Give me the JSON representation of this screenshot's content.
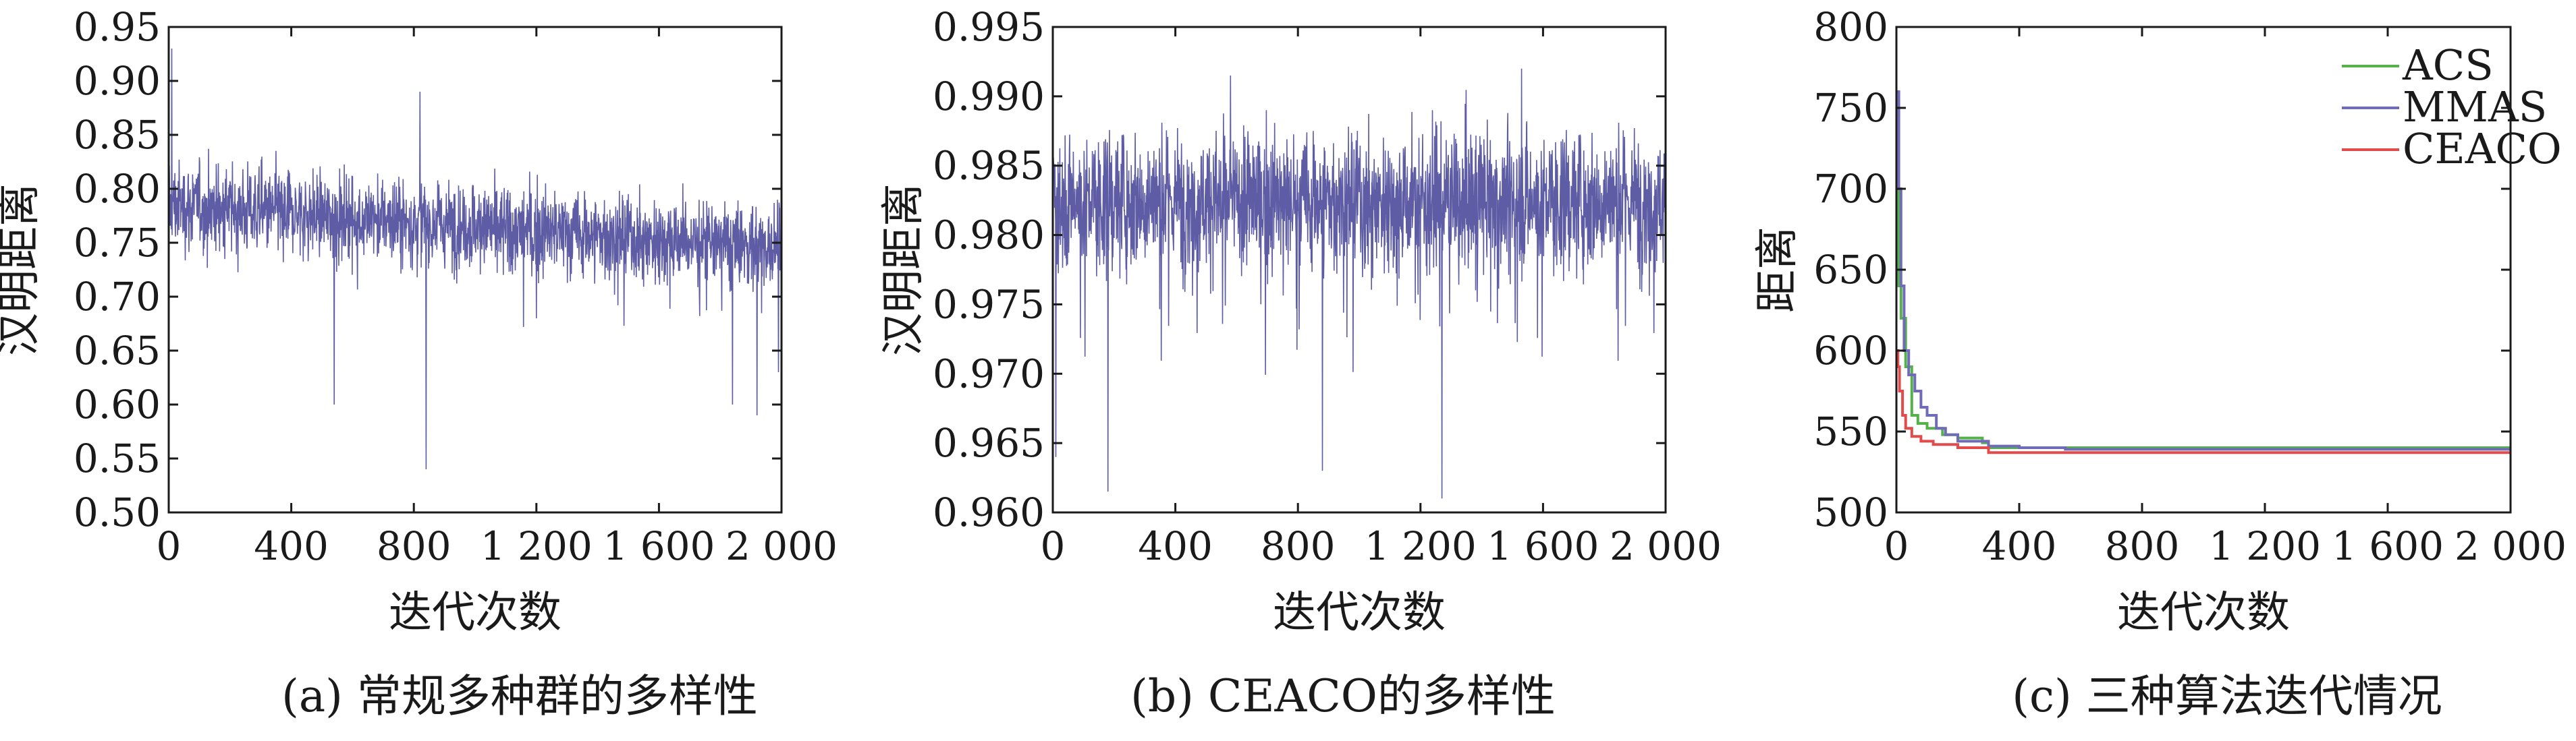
{
  "chart_data": [
    {
      "type": "line",
      "caption": "(a) 常规多种群的多样性",
      "xlabel": "迭代次数",
      "ylabel": "汉明距离",
      "xlim": [
        0,
        2000
      ],
      "ylim": [
        0.5,
        0.95
      ],
      "xticks": [
        "0",
        "400",
        "800",
        "1 200",
        "1 600",
        "2 000"
      ],
      "yticks": [
        "0.50",
        "0.55",
        "0.60",
        "0.65",
        "0.70",
        "0.75",
        "0.80",
        "0.85",
        "0.90",
        "0.95"
      ],
      "series": [
        {
          "color": "#4b4a9a",
          "description": "noisy diversity trace, mean ~0.78 declining to ~0.74, fluctuating roughly 0.70–0.84",
          "spikes": [
            [
              0,
              0.95
            ],
            [
              10,
              0.93
            ],
            [
              540,
              0.6
            ],
            [
              820,
              0.89
            ],
            [
              840,
              0.54
            ],
            [
              1840,
              0.6
            ],
            [
              1920,
              0.59
            ],
            [
              1990,
              0.63
            ]
          ]
        }
      ]
    },
    {
      "type": "line",
      "caption": "(b) CEACO的多样性",
      "xlabel": "迭代次数",
      "ylabel": "汉明距离",
      "xlim": [
        0,
        2000
      ],
      "ylim": [
        0.96,
        0.995
      ],
      "xticks": [
        "0",
        "400",
        "800",
        "1 200",
        "1 600",
        "2 000"
      ],
      "yticks": [
        "0.960",
        "0.965",
        "0.970",
        "0.975",
        "0.980",
        "0.985",
        "0.990",
        "0.995"
      ],
      "series": [
        {
          "color": "#4b4a9a",
          "description": "noisy diversity trace, mean ~0.982, fluctuating roughly 0.975–0.990",
          "spikes": [
            [
              10,
              0.964
            ],
            [
              180,
              0.9615
            ],
            [
              880,
              0.963
            ],
            [
              1270,
              0.961
            ],
            [
              580,
              0.9915
            ],
            [
              1530,
              0.992
            ]
          ]
        }
      ]
    },
    {
      "type": "line",
      "caption": "(c) 三种算法迭代情况",
      "xlabel": "迭代次数",
      "ylabel": "距离",
      "xlim": [
        0,
        2000
      ],
      "ylim": [
        500,
        800
      ],
      "xticks": [
        "0",
        "400",
        "800",
        "1 200",
        "1 600",
        "2 000"
      ],
      "yticks": [
        "500",
        "550",
        "600",
        "650",
        "700",
        "750",
        "800"
      ],
      "legend_position": "top-right",
      "series": [
        {
          "name": "ACS",
          "color": "#55b24a",
          "x": [
            0,
            8,
            15,
            30,
            50,
            70,
            100,
            150,
            200,
            280,
            300,
            2000
          ],
          "y": [
            700,
            640,
            620,
            590,
            560,
            555,
            552,
            548,
            546,
            543,
            540,
            540
          ]
        },
        {
          "name": "MMAS",
          "color": "#6f6bb8",
          "x": [
            0,
            8,
            15,
            25,
            40,
            60,
            80,
            100,
            130,
            160,
            200,
            300,
            400,
            550,
            2000
          ],
          "y": [
            760,
            700,
            640,
            600,
            585,
            575,
            565,
            560,
            552,
            548,
            544,
            541,
            540,
            539,
            539
          ]
        },
        {
          "name": "CEACO",
          "color": "#e34a4a",
          "x": [
            0,
            5,
            10,
            20,
            30,
            50,
            80,
            120,
            200,
            300,
            2000
          ],
          "y": [
            600,
            590,
            575,
            560,
            552,
            547,
            544,
            542,
            540,
            537,
            537
          ]
        }
      ]
    }
  ]
}
